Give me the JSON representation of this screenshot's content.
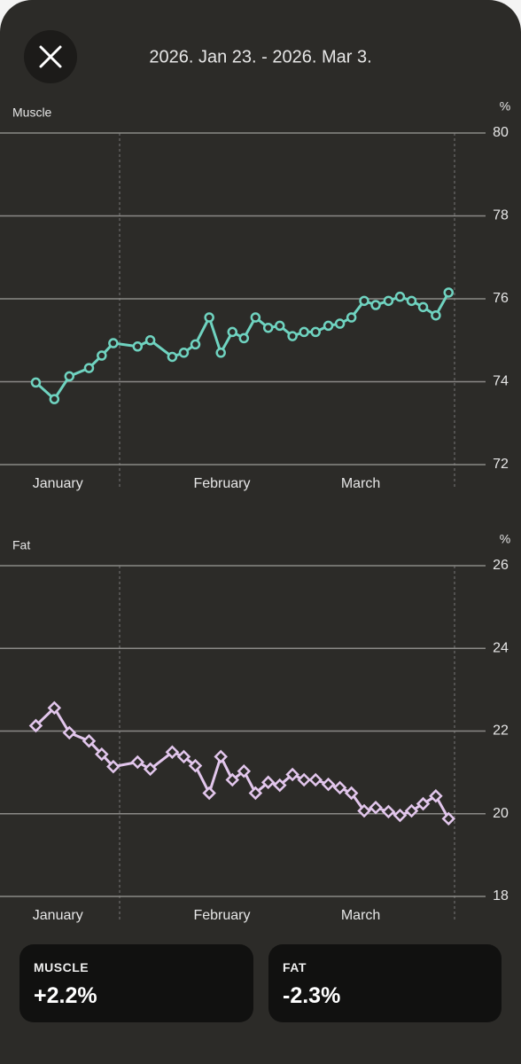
{
  "header": {
    "date_range": "2026. Jan 23. - 2026. Mar 3."
  },
  "chart_data": [
    {
      "type": "line",
      "title": "Muscle",
      "y_unit": "%",
      "marker": "circle",
      "color": "#6fd3c0",
      "grid": true,
      "x": [
        3.1,
        4.7,
        6,
        7.7,
        8.8,
        9.8,
        11.9,
        13,
        14.9,
        15.9,
        16.9,
        18.1,
        19.1,
        20.1,
        21.1,
        22.1,
        23.2,
        24.2,
        25.3,
        26.3,
        27.3,
        28.4,
        29.4,
        30.4,
        31.5,
        32.5,
        33.6,
        34.6,
        35.6,
        36.6,
        37.7,
        38.8
      ],
      "values": [
        73.98,
        73.58,
        74.13,
        74.33,
        74.63,
        74.93,
        74.85,
        75.0,
        74.6,
        74.7,
        74.9,
        75.55,
        74.7,
        75.2,
        75.05,
        75.55,
        75.3,
        75.35,
        75.1,
        75.2,
        75.2,
        75.35,
        75.4,
        75.55,
        75.95,
        75.85,
        75.95,
        76.05,
        75.95,
        75.8,
        75.6,
        76.15
      ],
      "xlim": [
        0,
        42
      ],
      "xticks": [
        {
          "value": 5.0,
          "label": "January"
        },
        {
          "value": 19.2,
          "label": "February"
        },
        {
          "value": 31.2,
          "label": "March"
        }
      ],
      "ylim": [
        72,
        80
      ],
      "yticks": [
        72,
        74,
        76,
        78,
        80
      ]
    },
    {
      "type": "line",
      "title": "Fat",
      "y_unit": "%",
      "marker": "diamond",
      "color": "#e2c6ec",
      "grid": true,
      "x": [
        3.1,
        4.7,
        6,
        7.7,
        8.8,
        9.8,
        11.9,
        13,
        14.9,
        15.9,
        16.9,
        18.1,
        19.1,
        20.1,
        21.1,
        22.1,
        23.2,
        24.2,
        25.3,
        26.3,
        27.3,
        28.4,
        29.4,
        30.4,
        31.5,
        32.5,
        33.6,
        34.6,
        35.6,
        36.6,
        37.7,
        38.8
      ],
      "values": [
        22.13,
        22.56,
        21.96,
        21.76,
        21.44,
        21.14,
        21.25,
        21.08,
        21.49,
        21.38,
        21.16,
        20.5,
        21.38,
        20.82,
        21.03,
        20.5,
        20.76,
        20.69,
        20.95,
        20.82,
        20.82,
        20.71,
        20.63,
        20.5,
        20.07,
        20.15,
        20.05,
        19.96,
        20.07,
        20.24,
        20.43,
        19.88
      ],
      "xlim": [
        0,
        42
      ],
      "xticks": [
        {
          "value": 5.0,
          "label": "January"
        },
        {
          "value": 19.2,
          "label": "February"
        },
        {
          "value": 31.2,
          "label": "March"
        }
      ],
      "ylim": [
        18,
        26
      ],
      "yticks": [
        18,
        20,
        22,
        24,
        26
      ]
    }
  ],
  "summary": [
    {
      "label": "MUSCLE",
      "value": "+2.2%"
    },
    {
      "label": "FAT",
      "value": "-2.3%"
    }
  ]
}
